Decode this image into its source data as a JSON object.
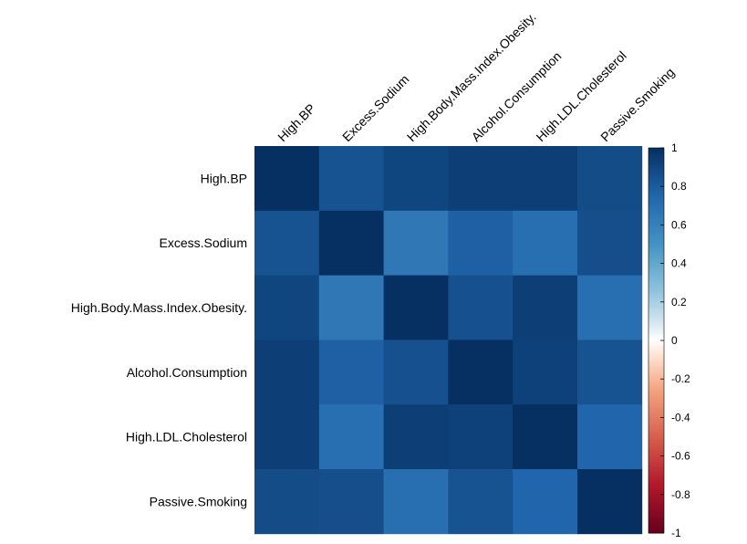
{
  "chart_data": {
    "type": "heatmap",
    "title": "",
    "rows": [
      "High.BP",
      "Excess.Sodium",
      "High.Body.Mass.Index.Obesity.",
      "Alcohol.Consumption",
      "High.LDL.Cholesterol",
      "Passive.Smoking"
    ],
    "columns": [
      "High.BP",
      "Excess.Sodium",
      "High.Body.Mass.Index.Obesity.",
      "Alcohol.Consumption",
      "High.LDL.Cholesterol",
      "Passive.Smoking"
    ],
    "values": [
      [
        1.0,
        0.84,
        0.9,
        0.93,
        0.93,
        0.87
      ],
      [
        0.84,
        1.0,
        0.65,
        0.78,
        0.7,
        0.86
      ],
      [
        0.9,
        0.65,
        1.0,
        0.85,
        0.93,
        0.7
      ],
      [
        0.93,
        0.78,
        0.85,
        1.0,
        0.92,
        0.84
      ],
      [
        0.93,
        0.7,
        0.93,
        0.92,
        1.0,
        0.75
      ],
      [
        0.87,
        0.86,
        0.7,
        0.84,
        0.75,
        1.0
      ]
    ],
    "color_scale": {
      "min": -1,
      "max": 1,
      "stops": [
        {
          "value": -1,
          "color": "#67001F"
        },
        {
          "value": -0.75,
          "color": "#B2182B"
        },
        {
          "value": -0.5,
          "color": "#D6604D"
        },
        {
          "value": -0.25,
          "color": "#F4A582"
        },
        {
          "value": -0.1,
          "color": "#FDDBC7"
        },
        {
          "value": 0,
          "color": "#FFFFFF"
        },
        {
          "value": 0.1,
          "color": "#D1E5F0"
        },
        {
          "value": 0.25,
          "color": "#92C5DE"
        },
        {
          "value": 0.5,
          "color": "#4393C3"
        },
        {
          "value": 0.75,
          "color": "#2166AC"
        },
        {
          "value": 1,
          "color": "#053061"
        }
      ]
    },
    "colorbar_ticks": [
      "1",
      "0.8",
      "0.6",
      "0.4",
      "0.2",
      "0",
      "-0.2",
      "-0.4",
      "-0.6",
      "-0.8",
      "-1"
    ]
  }
}
